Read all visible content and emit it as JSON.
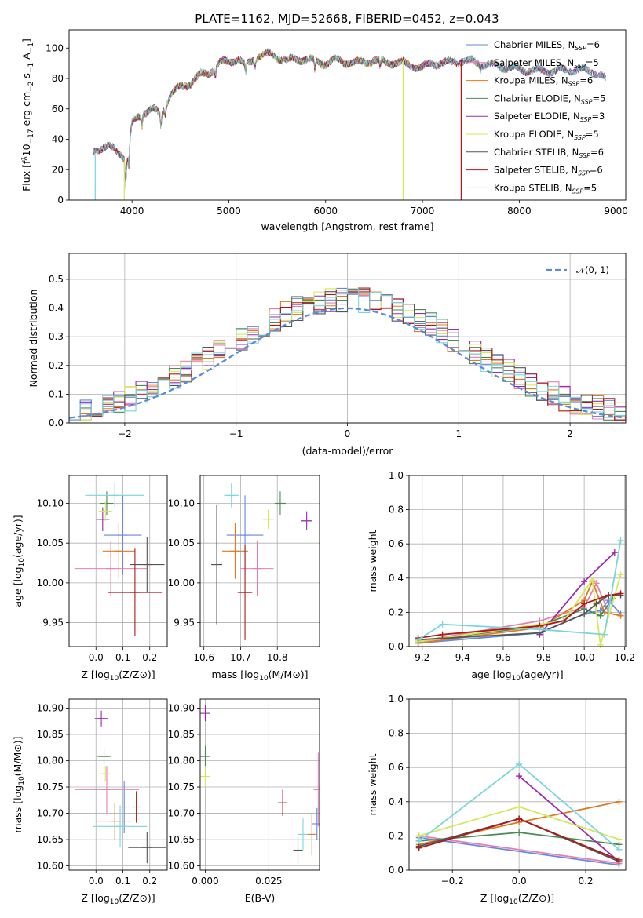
{
  "figure_title": "PLATE=1162, MJD=52668, FIBERID=0452, z=0.043",
  "colors": {
    "Chabrier MILES": "#6688dd",
    "Salpeter MILES": "#e87fb2",
    "Kroupa MILES": "#e07a20",
    "Chabrier ELODIE": "#4a8a55",
    "Salpeter ELODIE": "#9a2ab0",
    "Kroupa ELODIE": "#d4e85a",
    "Chabrier STELIB": "#555555",
    "Salpeter STELIB": "#b01818",
    "Kroupa STELIB": "#7ad6dc",
    "normal": "#5b8bd8",
    "grid": "#b0b0b0"
  },
  "chart_data": [
    {
      "id": "spectrum",
      "type": "line",
      "title": "PLATE=1162, MJD=52668, FIBERID=0452, z=0.043",
      "xlabel": "wavelength [Angstrom, rest frame]",
      "ylabel_parts": [
        "Flux [f",
        "λ",
        "10",
        "−17",
        " erg cm",
        "−2",
        " s",
        "−1",
        " A",
        "−1",
        "]"
      ],
      "xlim": [
        3350,
        9100
      ],
      "ylim": [
        0,
        112
      ],
      "xticks": [
        4000,
        5000,
        6000,
        7000,
        8000,
        9000
      ],
      "yticks": [
        0,
        20,
        40,
        60,
        80,
        100
      ],
      "grid": false,
      "legend_position": "top-right",
      "series": [
        {
          "name": "Chabrier MILES",
          "nssp": "6"
        },
        {
          "name": "Salpeter MILES",
          "nssp": "5"
        },
        {
          "name": "Kroupa MILES",
          "nssp": "6"
        },
        {
          "name": "Chabrier ELODIE",
          "nssp": "5"
        },
        {
          "name": "Salpeter ELODIE",
          "nssp": "3"
        },
        {
          "name": "Kroupa ELODIE",
          "nssp": "5"
        },
        {
          "name": "Chabrier STELIB",
          "nssp": "6"
        },
        {
          "name": "Salpeter STELIB",
          "nssp": "6"
        },
        {
          "name": "Kroupa STELIB",
          "nssp": "5"
        }
      ],
      "continuum": [
        [
          3600,
          32
        ],
        [
          3700,
          35
        ],
        [
          3800,
          34
        ],
        [
          3900,
          30
        ],
        [
          3950,
          25
        ],
        [
          4000,
          50
        ],
        [
          4100,
          57
        ],
        [
          4200,
          60
        ],
        [
          4300,
          56
        ],
        [
          4400,
          70
        ],
        [
          4500,
          74
        ],
        [
          4600,
          77
        ],
        [
          4700,
          82
        ],
        [
          4800,
          84
        ],
        [
          4900,
          90
        ],
        [
          5000,
          91
        ],
        [
          5100,
          93
        ],
        [
          5175,
          88
        ],
        [
          5300,
          95
        ],
        [
          5400,
          96
        ],
        [
          5500,
          94
        ],
        [
          5600,
          92
        ],
        [
          5800,
          93
        ],
        [
          5900,
          91
        ],
        [
          6000,
          90
        ],
        [
          6100,
          92
        ],
        [
          6300,
          90
        ],
        [
          6500,
          92
        ],
        [
          6600,
          91
        ],
        [
          6800,
          90
        ],
        [
          7000,
          87
        ],
        [
          7100,
          90
        ],
        [
          7250,
          90
        ],
        [
          7400,
          92
        ],
        [
          7600,
          90
        ],
        [
          7800,
          88
        ],
        [
          8000,
          86
        ],
        [
          8200,
          85
        ],
        [
          8400,
          85
        ],
        [
          8600,
          86
        ],
        [
          8800,
          84
        ],
        [
          8900,
          79
        ]
      ],
      "drop_outs": [
        {
          "series": "Kroupa STELIB",
          "x": 3620
        },
        {
          "series": "Kroupa ELODIE",
          "x": 3920
        },
        {
          "series": "Kroupa ELODIE",
          "x": 6800
        },
        {
          "series": "Salpeter STELIB",
          "x": 7400
        }
      ]
    },
    {
      "id": "residual-histogram",
      "type": "histogram",
      "xlabel": "(data-model)/error",
      "ylabel": "Normed distribution",
      "xlim": [
        -2.5,
        2.5
      ],
      "ylim": [
        0,
        0.59
      ],
      "xticks": [
        -2,
        -1,
        0,
        1,
        2
      ],
      "yticks": [
        0.0,
        0.1,
        0.2,
        0.3,
        0.4,
        0.5
      ],
      "grid": true,
      "legend_position": "top-right",
      "normal_curve_label": "𝒩(0, 1)",
      "bin_edges_start": -2.5,
      "bin_width": 0.1,
      "bin_count": 50
    },
    {
      "id": "age-vs-Z",
      "type": "errorbar",
      "xlabel": "Z [log10(Z/Z⊙)]",
      "ylabel": "age  [log10(age/yr)]",
      "xlim": [
        -0.1,
        0.265
      ],
      "ylim": [
        9.92,
        10.135
      ],
      "xticks": [
        0.0,
        0.1,
        0.2
      ],
      "yticks": [
        9.95,
        10.0,
        10.05,
        10.1
      ],
      "grid": true,
      "points": [
        {
          "series": "Chabrier MILES",
          "x": 0.1,
          "y": 10.06,
          "xerr": 0.07,
          "yerr": 0.05
        },
        {
          "series": "Salpeter MILES",
          "x": 0.055,
          "y": 10.018,
          "xerr": 0.135,
          "yerr": 0.035
        },
        {
          "series": "Kroupa MILES",
          "x": 0.085,
          "y": 10.04,
          "xerr": 0.06,
          "yerr": 0.035
        },
        {
          "series": "Chabrier ELODIE",
          "x": 0.04,
          "y": 10.1,
          "xerr": 0.025,
          "yerr": 0.015
        },
        {
          "series": "Salpeter ELODIE",
          "x": 0.025,
          "y": 10.08,
          "xerr": 0.025,
          "yerr": 0.015
        },
        {
          "series": "Kroupa ELODIE",
          "x": 0.035,
          "y": 10.09,
          "xerr": 0.025,
          "yerr": 0.012
        },
        {
          "series": "Chabrier STELIB",
          "x": 0.19,
          "y": 10.023,
          "xerr": 0.065,
          "yerr": 0.035
        },
        {
          "series": "Salpeter STELIB",
          "x": 0.145,
          "y": 9.988,
          "xerr": 0.1,
          "yerr": 0.055
        },
        {
          "series": "Kroupa STELIB",
          "x": 0.07,
          "y": 10.11,
          "xerr": 0.11,
          "yerr": 0.015
        }
      ]
    },
    {
      "id": "age-vs-mass",
      "type": "errorbar",
      "xlabel": "mass [log10(M/M⊙)]",
      "ylabel": "",
      "xlim": [
        10.59,
        10.915
      ],
      "ylim": [
        9.92,
        10.135
      ],
      "xticks": [
        10.6,
        10.7,
        10.8
      ],
      "yticks": [
        9.95,
        10.0,
        10.05,
        10.1
      ],
      "grid": true,
      "points": [
        {
          "series": "Chabrier MILES",
          "x": 10.712,
          "y": 10.06,
          "xerr": 0.05,
          "yerr": 0.05
        },
        {
          "series": "Salpeter MILES",
          "x": 10.745,
          "y": 10.018,
          "xerr": 0.045,
          "yerr": 0.035
        },
        {
          "series": "Kroupa MILES",
          "x": 10.685,
          "y": 10.04,
          "xerr": 0.035,
          "yerr": 0.035
        },
        {
          "series": "Chabrier ELODIE",
          "x": 10.808,
          "y": 10.1,
          "xerr": 0.015,
          "yerr": 0.015
        },
        {
          "series": "Salpeter ELODIE",
          "x": 10.88,
          "y": 10.078,
          "xerr": 0.015,
          "yerr": 0.012
        },
        {
          "series": "Kroupa ELODIE",
          "x": 10.775,
          "y": 10.08,
          "xerr": 0.015,
          "yerr": 0.012
        },
        {
          "series": "Chabrier STELIB",
          "x": 10.635,
          "y": 10.023,
          "xerr": 0.015,
          "yerr": 0.075
        },
        {
          "series": "Salpeter STELIB",
          "x": 10.712,
          "y": 9.988,
          "xerr": 0.02,
          "yerr": 0.06
        },
        {
          "series": "Kroupa STELIB",
          "x": 10.675,
          "y": 10.11,
          "xerr": 0.02,
          "yerr": 0.015
        }
      ]
    },
    {
      "id": "mass-weight-vs-age",
      "type": "line",
      "xlabel": "age  [log10(age/yr)]",
      "ylabel": "mass weight",
      "xlim": [
        9.135,
        10.205
      ],
      "ylim": [
        0,
        1
      ],
      "xticks": [
        9.2,
        9.4,
        9.6,
        9.8,
        10.0,
        10.2
      ],
      "yticks": [
        0.0,
        0.2,
        0.4,
        0.6,
        0.8,
        1.0
      ],
      "grid": true,
      "series": [
        {
          "name": "Chabrier MILES",
          "x": [
            9.18,
            9.78,
            10.0,
            10.08,
            10.12,
            10.18
          ],
          "y": [
            0.02,
            0.08,
            0.19,
            0.21,
            0.27,
            0.19
          ]
        },
        {
          "name": "Salpeter MILES",
          "x": [
            9.18,
            9.78,
            10.0,
            10.06,
            10.12
          ],
          "y": [
            0.03,
            0.15,
            0.23,
            0.37,
            0.2
          ]
        },
        {
          "name": "Kroupa MILES",
          "x": [
            9.18,
            9.78,
            10.0,
            10.04,
            10.1,
            10.18
          ],
          "y": [
            0.02,
            0.11,
            0.27,
            0.38,
            0.2,
            0.18
          ]
        },
        {
          "name": "Chabrier ELODIE",
          "x": [
            9.18,
            9.78,
            10.0,
            10.08,
            10.14
          ],
          "y": [
            0.03,
            0.12,
            0.22,
            0.18,
            0.28
          ]
        },
        {
          "name": "Salpeter ELODIE",
          "x": [
            9.78,
            10.0,
            10.15
          ],
          "y": [
            0.07,
            0.38,
            0.55
          ]
        },
        {
          "name": "Kroupa ELODIE",
          "x": [
            9.18,
            9.9,
            10.04,
            10.08,
            10.18
          ],
          "y": [
            0.03,
            0.15,
            0.39,
            0.01,
            0.42
          ]
        },
        {
          "name": "Chabrier STELIB",
          "x": [
            9.18,
            9.78,
            10.0,
            10.06,
            10.12,
            10.18
          ],
          "y": [
            0.04,
            0.08,
            0.19,
            0.25,
            0.3,
            0.3
          ]
        },
        {
          "name": "Salpeter STELIB",
          "x": [
            9.18,
            9.3,
            9.78,
            9.9,
            10.0,
            10.12,
            10.18
          ],
          "y": [
            0.05,
            0.07,
            0.12,
            0.15,
            0.25,
            0.3,
            0.31
          ]
        },
        {
          "name": "Kroupa STELIB",
          "x": [
            9.18,
            9.3,
            9.78,
            10.1,
            10.18
          ],
          "y": [
            0.04,
            0.13,
            0.1,
            0.07,
            0.62
          ]
        }
      ]
    },
    {
      "id": "mass-vs-Z",
      "type": "errorbar",
      "xlabel": "Z [log10(Z/Z⊙)]",
      "ylabel": "mass [log10(M/M⊙)]",
      "xlim": [
        -0.1,
        0.265
      ],
      "ylim": [
        10.592,
        10.917
      ],
      "xticks": [
        0.0,
        0.1,
        0.2
      ],
      "yticks": [
        10.6,
        10.65,
        10.7,
        10.75,
        10.8,
        10.85,
        10.9
      ],
      "grid": true,
      "points": [
        {
          "series": "Chabrier MILES",
          "x": 0.105,
          "y": 10.712,
          "xerr": 0.075,
          "yerr": 0.05
        },
        {
          "series": "Salpeter MILES",
          "x": 0.04,
          "y": 10.745,
          "xerr": 0.12,
          "yerr": 0.045
        },
        {
          "series": "Kroupa MILES",
          "x": 0.07,
          "y": 10.685,
          "xerr": 0.065,
          "yerr": 0.035
        },
        {
          "series": "Chabrier ELODIE",
          "x": 0.03,
          "y": 10.808,
          "xerr": 0.025,
          "yerr": 0.015
        },
        {
          "series": "Salpeter ELODIE",
          "x": 0.02,
          "y": 10.88,
          "xerr": 0.025,
          "yerr": 0.015
        },
        {
          "series": "Kroupa ELODIE",
          "x": 0.035,
          "y": 10.775,
          "xerr": 0.015,
          "yerr": 0.015
        },
        {
          "series": "Chabrier STELIB",
          "x": 0.19,
          "y": 10.635,
          "xerr": 0.07,
          "yerr": 0.03
        },
        {
          "series": "Salpeter STELIB",
          "x": 0.15,
          "y": 10.712,
          "xerr": 0.09,
          "yerr": 0.03
        },
        {
          "series": "Kroupa STELIB",
          "x": 0.09,
          "y": 10.675,
          "xerr": 0.1,
          "yerr": 0.04
        }
      ]
    },
    {
      "id": "mass-vs-EBV",
      "type": "errorbar",
      "xlabel": "E(B-V)",
      "ylabel": "",
      "xlim": [
        -0.002,
        0.045
      ],
      "ylim": [
        10.592,
        10.917
      ],
      "xticks": [
        0.0,
        0.025
      ],
      "xtick_labels": [
        "0.000",
        "0.025"
      ],
      "yticks": [
        10.6,
        10.65,
        10.7,
        10.75,
        10.8,
        10.85,
        10.9
      ],
      "grid": true,
      "points": [
        {
          "series": "Chabrier MILES",
          "x": 0.044,
          "y": 10.68,
          "xerr": 0,
          "yerr": 0.03
        },
        {
          "series": "Salpeter MILES",
          "x": 0.0445,
          "y": 10.745,
          "xerr": 0,
          "yerr": 0.07
        },
        {
          "series": "Kroupa MILES",
          "x": 0.042,
          "y": 10.66,
          "xerr": 0,
          "yerr": 0.04
        },
        {
          "series": "Chabrier ELODIE",
          "x": 0.0,
          "y": 10.808,
          "xerr": 0,
          "yerr": 0.02
        },
        {
          "series": "Salpeter ELODIE",
          "x": 0.0,
          "y": 10.89,
          "xerr": 0,
          "yerr": 0.015
        },
        {
          "series": "Kroupa ELODIE",
          "x": 0.0,
          "y": 10.77,
          "xerr": 0,
          "yerr": 0.02
        },
        {
          "series": "Chabrier STELIB",
          "x": 0.0365,
          "y": 10.63,
          "xerr": 0,
          "yerr": 0.025
        },
        {
          "series": "Salpeter STELIB",
          "x": 0.0305,
          "y": 10.72,
          "xerr": 0,
          "yerr": 0.025
        },
        {
          "series": "Kroupa STELIB",
          "x": 0.0385,
          "y": 10.66,
          "xerr": 0,
          "yerr": 0.03
        }
      ]
    },
    {
      "id": "mass-weight-vs-Z",
      "type": "line",
      "xlabel": "Z [log10(Z/Z⊙)]",
      "ylabel": "mass weight",
      "xlim": [
        -0.33,
        0.32
      ],
      "ylim": [
        0,
        1
      ],
      "xticks": [
        -0.2,
        0.0,
        0.2
      ],
      "xtick_labels": [
        "−0.2",
        "0.0",
        "0.2"
      ],
      "yticks": [
        0.0,
        0.2,
        0.4,
        0.6,
        0.8,
        1.0
      ],
      "grid": true,
      "series": [
        {
          "name": "Chabrier MILES",
          "x": [
            -0.3,
            0.3
          ],
          "y": [
            0.19,
            0.03
          ]
        },
        {
          "name": "Salpeter MILES",
          "x": [
            -0.3,
            0.3
          ],
          "y": [
            0.2,
            0.04
          ]
        },
        {
          "name": "Kroupa MILES",
          "x": [
            -0.3,
            0.0,
            0.3
          ],
          "y": [
            0.15,
            0.28,
            0.4
          ]
        },
        {
          "name": "Chabrier ELODIE",
          "x": [
            -0.3,
            0.0,
            0.3
          ],
          "y": [
            0.17,
            0.22,
            0.15
          ]
        },
        {
          "name": "Salpeter ELODIE",
          "x": [
            0.0,
            0.3
          ],
          "y": [
            0.55,
            0.05
          ]
        },
        {
          "name": "Kroupa ELODIE",
          "x": [
            -0.3,
            0.0,
            0.3
          ],
          "y": [
            0.2,
            0.37,
            0.18
          ]
        },
        {
          "name": "Chabrier STELIB",
          "x": [
            -0.3,
            0.0,
            0.3
          ],
          "y": [
            0.14,
            0.3,
            0.05
          ]
        },
        {
          "name": "Salpeter STELIB",
          "x": [
            -0.3,
            0.0,
            0.3
          ],
          "y": [
            0.13,
            0.3,
            0.06
          ]
        },
        {
          "name": "Kroupa STELIB",
          "x": [
            -0.3,
            0.0,
            0.3
          ],
          "y": [
            0.17,
            0.62,
            0.12
          ]
        }
      ]
    }
  ]
}
